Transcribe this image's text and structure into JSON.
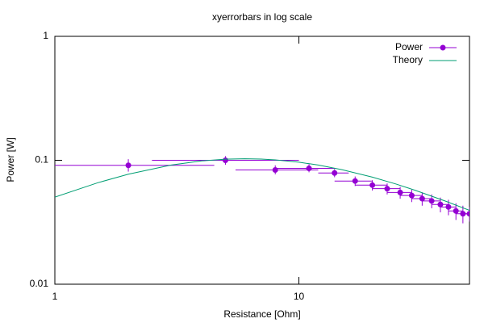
{
  "chart_data": {
    "type": "xyerrorbars",
    "title": "xyerrorbars in log scale",
    "xlabel": "Resistance [Ohm]",
    "ylabel": "Power [W]",
    "xscale": "log",
    "yscale": "log",
    "xlim": [
      1,
      50
    ],
    "ylim": [
      0.01,
      1
    ],
    "xticks": [
      1,
      10
    ],
    "yticks": [
      0.01,
      0.1,
      1
    ],
    "grid": false,
    "legend": "top-right",
    "series": [
      {
        "name": "Power",
        "color": "#9400d3",
        "x": [
          2,
          5,
          8,
          11,
          14,
          17,
          20,
          23,
          26,
          29,
          32,
          35,
          38,
          41,
          44,
          47,
          50
        ],
        "values": [
          0.091,
          0.1,
          0.0835,
          0.086,
          0.079,
          0.068,
          0.063,
          0.059,
          0.055,
          0.052,
          0.049,
          0.047,
          0.044,
          0.042,
          0.039,
          0.037,
          0.037
        ],
        "xlow": [
          1,
          2.5,
          5.5,
          8,
          12,
          14,
          17,
          20,
          23,
          26,
          29,
          32,
          35,
          38,
          41,
          44,
          47
        ],
        "xhigh": [
          4.5,
          10,
          12,
          14,
          16,
          20,
          23,
          26,
          29,
          32,
          35,
          38,
          41,
          44,
          47,
          50,
          50
        ],
        "ylow": [
          0.081,
          0.092,
          0.077,
          0.08,
          0.073,
          0.062,
          0.057,
          0.053,
          0.049,
          0.046,
          0.043,
          0.041,
          0.038,
          0.036,
          0.033,
          0.031,
          0.032
        ],
        "yhigh": [
          0.102,
          0.108,
          0.091,
          0.093,
          0.085,
          0.074,
          0.069,
          0.065,
          0.061,
          0.058,
          0.055,
          0.053,
          0.05,
          0.048,
          0.045,
          0.043,
          0.042
        ]
      },
      {
        "name": "Theory",
        "color": "#009e73",
        "x": [
          1,
          1.5,
          2,
          3,
          4,
          5,
          6,
          7,
          8,
          10,
          12,
          15,
          20,
          25,
          30,
          40,
          50
        ],
        "values": [
          0.0504,
          0.0659,
          0.0772,
          0.0915,
          0.0988,
          0.1021,
          0.1029,
          0.1023,
          0.1008,
          0.0965,
          0.0915,
          0.084,
          0.0731,
          0.0643,
          0.0572,
          0.0467,
          0.0394
        ]
      }
    ]
  }
}
